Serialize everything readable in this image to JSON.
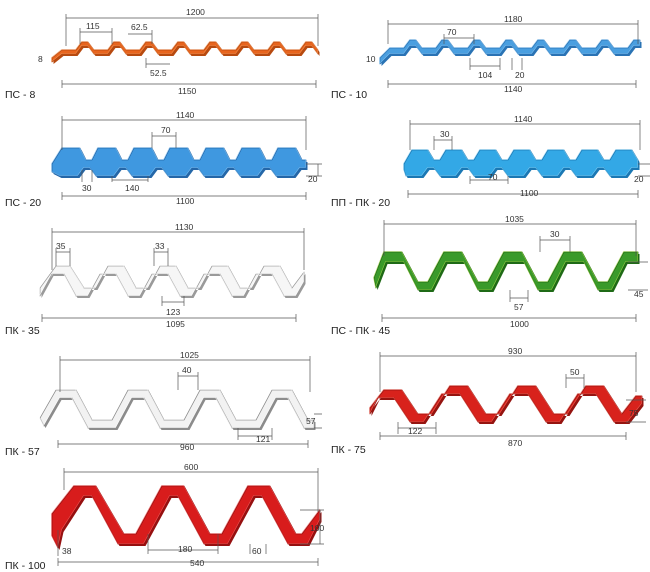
{
  "profiles": [
    {
      "id": "ps8",
      "label": "ПС - 8",
      "color": "#e8651e",
      "dark": "#b74a10",
      "light": "#f59a5c",
      "dims": {
        "top": "1200",
        "bottom": "1150",
        "d1": "115",
        "d2": "62.5",
        "d3": "52.5",
        "height": "8"
      }
    },
    {
      "id": "ps10",
      "label": "ПС - 10",
      "color": "#4a9fe0",
      "dark": "#2a73b4",
      "light": "#8cc6f1",
      "dims": {
        "top": "1180",
        "bottom": "1140",
        "d1": "70",
        "d2": "104",
        "d3": "20",
        "height": "10"
      }
    },
    {
      "id": "ps20",
      "label": "ПС - 20",
      "color": "#3f98e0",
      "dark": "#2567a8",
      "light": "#8cc6f1",
      "dims": {
        "top": "1140",
        "bottom": "1100",
        "d1": "70",
        "d2": "30",
        "d3": "140",
        "height": "20"
      }
    },
    {
      "id": "ppk20",
      "label": "ПП - ПК - 20",
      "color": "#33a8e6",
      "dark": "#1b78b4",
      "light": "#8fd3f5",
      "dims": {
        "top": "1140",
        "bottom": "1100",
        "d1": "30",
        "d2": "70",
        "height": "20"
      }
    },
    {
      "id": "pk35",
      "label": "ПК - 35",
      "color": "#f6f6f6",
      "dark": "#9a9a9a",
      "light": "#ffffff",
      "dims": {
        "top": "1130",
        "bottom": "1095",
        "d1": "35",
        "d2": "33",
        "d3": "123"
      }
    },
    {
      "id": "psk45",
      "label": "ПС - ПК - 45",
      "color": "#3a9a2a",
      "dark": "#1f6a16",
      "light": "#a6d84a",
      "dims": {
        "top": "1035",
        "bottom": "1000",
        "d1": "30",
        "d2": "57",
        "height": "45"
      }
    },
    {
      "id": "pk57",
      "label": "ПК - 57",
      "color": "#f2f2f2",
      "dark": "#8c8c8c",
      "light": "#ffffff",
      "dims": {
        "top": "1025",
        "bottom": "960",
        "d1": "40",
        "d2": "121",
        "height": "57"
      }
    },
    {
      "id": "pk75",
      "label": "ПК - 75",
      "color": "#d8221c",
      "dark": "#951410",
      "light": "#f06a5e",
      "dims": {
        "top": "930",
        "bottom": "870",
        "d1": "50",
        "d2": "122",
        "height": "75"
      }
    },
    {
      "id": "pk100",
      "label": "ПК - 100",
      "color": "#d81c1c",
      "dark": "#961010",
      "light": "#f06060",
      "dims": {
        "top": "600",
        "bottom": "540",
        "d1": "180",
        "d2": "60",
        "d3": "38",
        "height": "100"
      }
    }
  ]
}
